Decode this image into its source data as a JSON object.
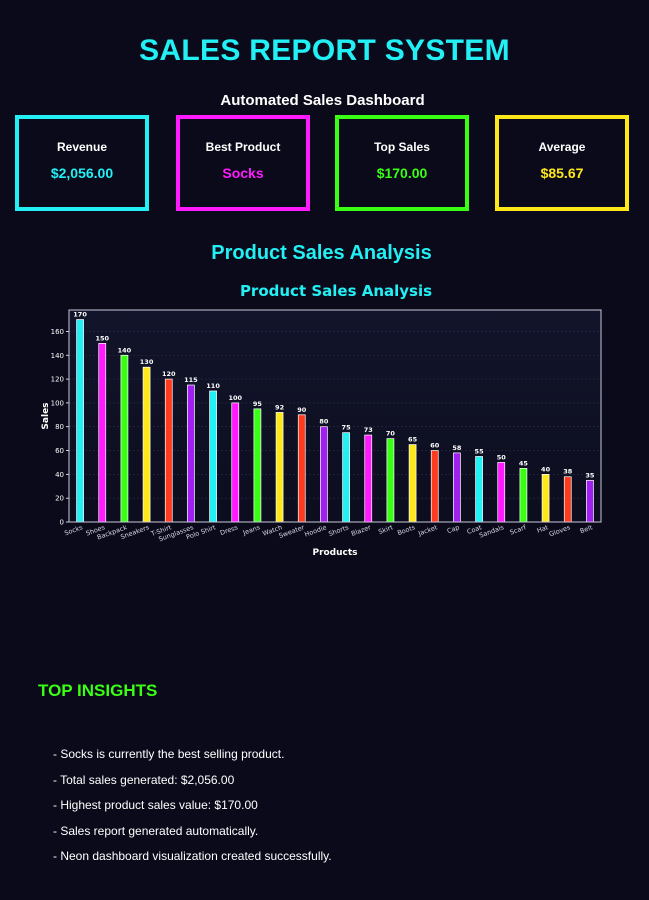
{
  "header": {
    "title": "SALES REPORT SYSTEM",
    "subtitle": "Automated Sales Dashboard"
  },
  "cards": [
    {
      "label": "Revenue",
      "value": "$2,056.00",
      "color": "#22f0f5"
    },
    {
      "label": "Best Product",
      "value": "Socks",
      "color": "#ff1aff"
    },
    {
      "label": "Top Sales",
      "value": "$170.00",
      "color": "#39ff14"
    },
    {
      "label": "Average",
      "value": "$85.67",
      "color": "#ffe81a"
    }
  ],
  "section": {
    "title": "Product Sales Analysis"
  },
  "chart_data": {
    "type": "bar",
    "title": "Product Sales Analysis",
    "xlabel": "Products",
    "ylabel": "Sales",
    "ylim": [
      0,
      178
    ],
    "yticks": [
      0,
      20,
      40,
      60,
      80,
      100,
      120,
      140,
      160
    ],
    "grid": true,
    "categories": [
      "Socks",
      "Shoes",
      "Backpack",
      "Sneakers",
      "T-Shirt",
      "Sunglasses",
      "Polo Shirt",
      "Dress",
      "Jeans",
      "Watch",
      "Sweater",
      "Hoodie",
      "Shorts",
      "Blazer",
      "Skirt",
      "Boots",
      "Jacket",
      "Cap",
      "Coat",
      "Sandals",
      "Scarf",
      "Hat",
      "Gloves",
      "Belt"
    ],
    "values": [
      170,
      150,
      140,
      130,
      120,
      115,
      110,
      100,
      95,
      92,
      90,
      80,
      75,
      73,
      70,
      65,
      60,
      58,
      55,
      50,
      45,
      40,
      38,
      35
    ],
    "colors": [
      "#22f0f5",
      "#ff1aff",
      "#39ff14",
      "#ffe81a",
      "#ff3b1f",
      "#a020f0"
    ],
    "colors_note": ""
  },
  "insights": {
    "title": "TOP INSIGHTS",
    "items": [
      "- Socks is currently the best selling product.",
      "- Total sales generated: $2,056.00",
      "- Highest product sales value: $170.00",
      "- Sales report generated automatically.",
      "- Neon dashboard visualization created successfully."
    ]
  }
}
